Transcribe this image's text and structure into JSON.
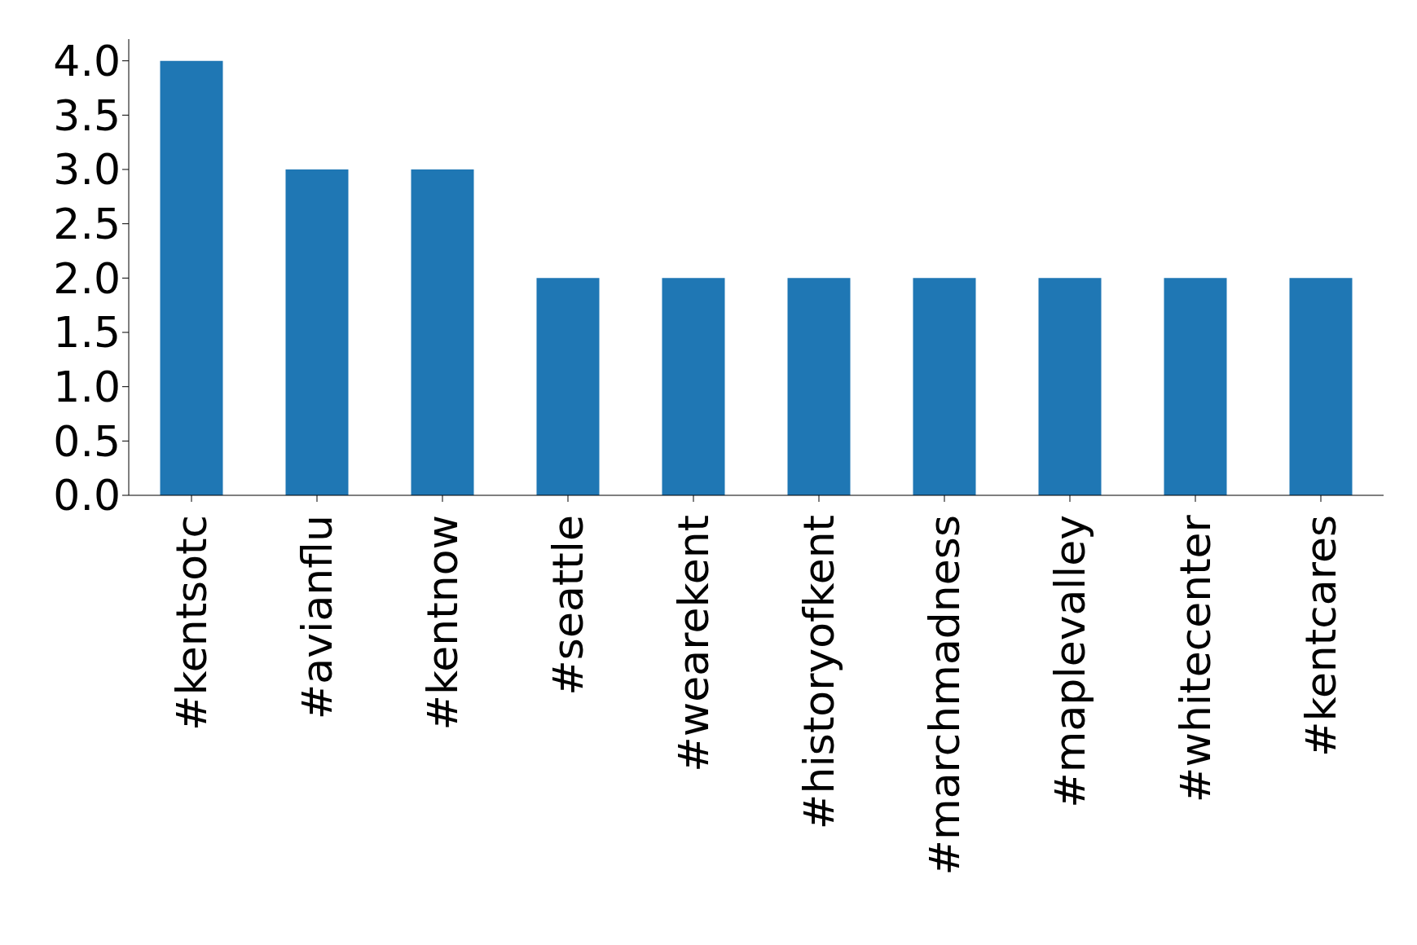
{
  "chart_data": {
    "type": "bar",
    "categories": [
      "#kentsotc",
      "#avianflu",
      "#kentnow",
      "#seattle",
      "#wearekent",
      "#historyofkent",
      "#marchmadness",
      "#maplevalley",
      "#whitecenter",
      "#kentcares"
    ],
    "values": [
      4,
      3,
      3,
      2,
      2,
      2,
      2,
      2,
      2,
      2
    ],
    "color": "#1f77b4",
    "ylim": [
      0,
      4.2
    ],
    "yticks": [
      {
        "value": 0,
        "label": "0.0"
      },
      {
        "value": 0.5,
        "label": "0.5"
      },
      {
        "value": 1,
        "label": "1.0"
      },
      {
        "value": 1.5,
        "label": "1.5"
      },
      {
        "value": 2,
        "label": "2.0"
      },
      {
        "value": 2.5,
        "label": "2.5"
      },
      {
        "value": 3,
        "label": "3.0"
      },
      {
        "value": 3.5,
        "label": "3.5"
      },
      {
        "value": 4,
        "label": "4.0"
      }
    ],
    "grid": false,
    "legend": false
  }
}
